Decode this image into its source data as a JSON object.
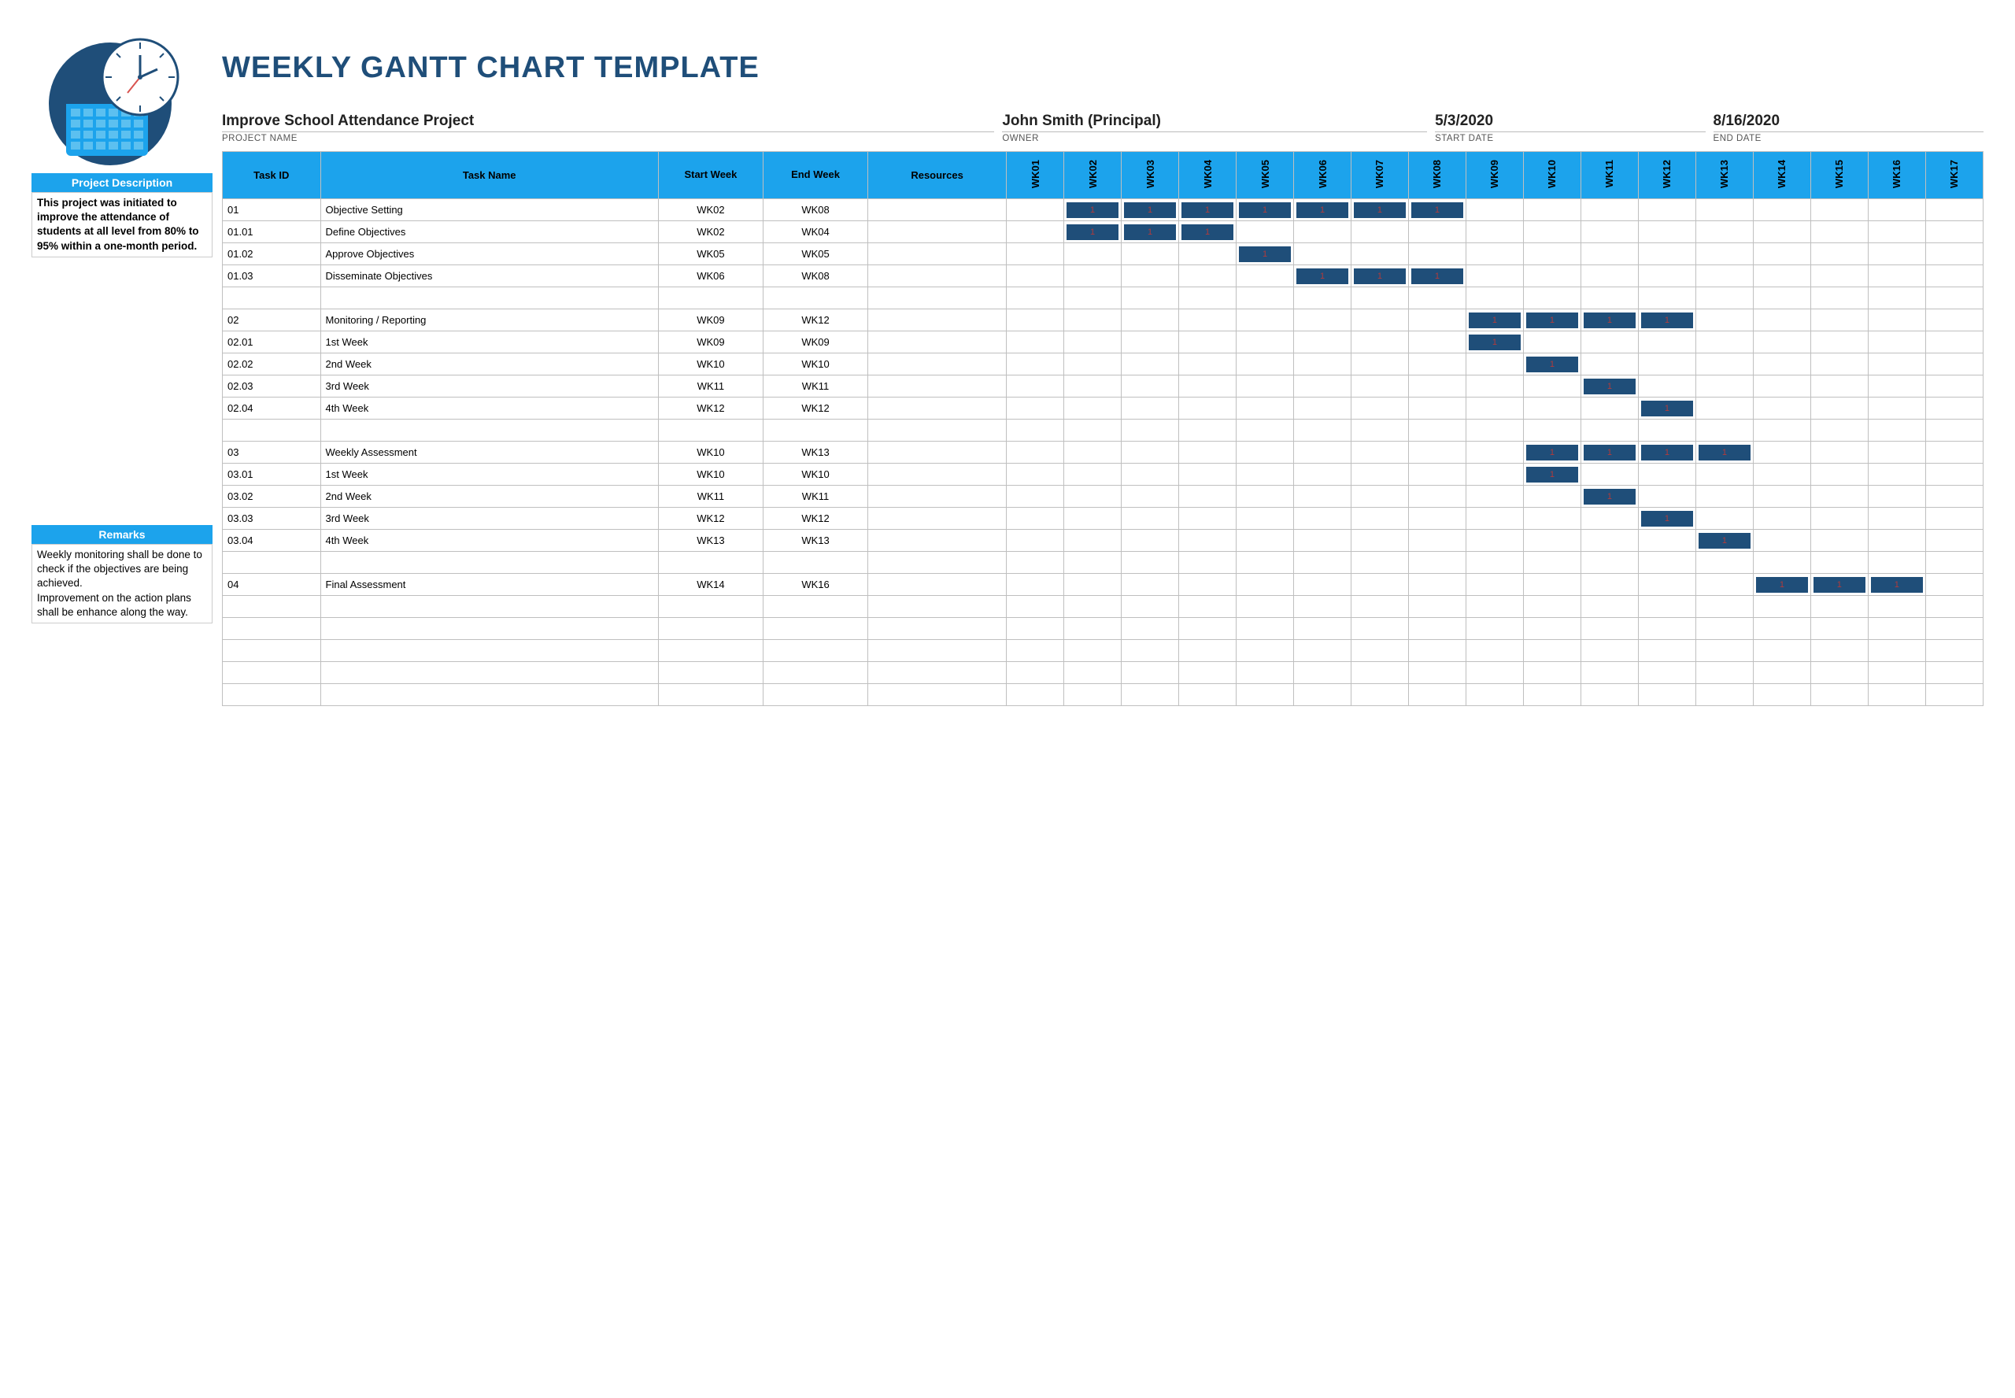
{
  "title": "WEEKLY GANTT CHART TEMPLATE",
  "colors": {
    "title_color": "#1f4e79",
    "header_blue": "#1ca3ec",
    "bar_fill": "#1f4e79",
    "bar_text": "#b23a3a",
    "border": "#bfbfbf",
    "background": "#ffffff"
  },
  "typography": {
    "title_fontsize": 38,
    "body_fontsize": 14,
    "meta_value_fontsize": 19,
    "meta_label_fontsize": 11.5
  },
  "left": {
    "desc_header": "Project Description",
    "desc_body": "This project was initiated to improve the attendance of students at all level from 80% to 95% within a one-month period.",
    "remarks_header": "Remarks",
    "remarks_body": "Weekly monitoring shall be done to check if the objectives are being achieved.\nImprovement on the action plans shall be enhance along the way."
  },
  "meta": {
    "project_name": {
      "label": "PROJECT NAME",
      "value": "Improve School Attendance Project"
    },
    "owner": {
      "label": "OWNER",
      "value": "John Smith (Principal)"
    },
    "start_date": {
      "label": "START DATE",
      "value": "5/3/2020"
    },
    "end_date": {
      "label": "END DATE",
      "value": "8/16/2020"
    }
  },
  "headers": {
    "task_id": "Task ID",
    "task_name": "Task Name",
    "start_week": "Start Week",
    "end_week": "End Week",
    "resources": "Resources"
  },
  "weeks": [
    "WK01",
    "WK02",
    "WK03",
    "WK04",
    "WK05",
    "WK06",
    "WK07",
    "WK08",
    "WK09",
    "WK10",
    "WK11",
    "WK12",
    "WK13",
    "WK14",
    "WK15",
    "WK16",
    "WK17"
  ],
  "tasks": [
    {
      "id": "01",
      "name": "Objective Setting",
      "start": "WK02",
      "end": "WK08",
      "bars": [
        2,
        3,
        4,
        5,
        6,
        7,
        8
      ]
    },
    {
      "id": "01.01",
      "name": "Define Objectives",
      "start": "WK02",
      "end": "WK04",
      "bars": [
        2,
        3,
        4
      ]
    },
    {
      "id": "01.02",
      "name": "Approve Objectives",
      "start": "WK05",
      "end": "WK05",
      "bars": [
        5
      ]
    },
    {
      "id": "01.03",
      "name": "Disseminate Objectives",
      "start": "WK06",
      "end": "WK08",
      "bars": [
        6,
        7,
        8
      ]
    },
    {
      "spacer": true
    },
    {
      "id": "02",
      "name": "Monitoring / Reporting",
      "start": "WK09",
      "end": "WK12",
      "bars": [
        9,
        10,
        11,
        12
      ]
    },
    {
      "id": "02.01",
      "name": "1st Week",
      "start": "WK09",
      "end": "WK09",
      "bars": [
        9
      ]
    },
    {
      "id": "02.02",
      "name": "2nd Week",
      "start": "WK10",
      "end": "WK10",
      "bars": [
        10
      ]
    },
    {
      "id": "02.03",
      "name": "3rd Week",
      "start": "WK11",
      "end": "WK11",
      "bars": [
        11
      ]
    },
    {
      "id": "02.04",
      "name": "4th Week",
      "start": "WK12",
      "end": "WK12",
      "bars": [
        12
      ]
    },
    {
      "spacer": true
    },
    {
      "id": "03",
      "name": "Weekly Assessment",
      "start": "WK10",
      "end": "WK13",
      "bars": [
        10,
        11,
        12,
        13
      ]
    },
    {
      "id": "03.01",
      "name": "1st Week",
      "start": "WK10",
      "end": "WK10",
      "bars": [
        10
      ]
    },
    {
      "id": "03.02",
      "name": "2nd Week",
      "start": "WK11",
      "end": "WK11",
      "bars": [
        11
      ]
    },
    {
      "id": "03.03",
      "name": "3rd Week",
      "start": "WK12",
      "end": "WK12",
      "bars": [
        12
      ]
    },
    {
      "id": "03.04",
      "name": "4th Week",
      "start": "WK13",
      "end": "WK13",
      "bars": [
        13
      ]
    },
    {
      "spacer": true
    },
    {
      "id": "04",
      "name": "Final Assessment",
      "start": "WK14",
      "end": "WK16",
      "bars": [
        14,
        15,
        16
      ]
    },
    {
      "spacer": true
    },
    {
      "spacer": true
    },
    {
      "spacer": true
    },
    {
      "spacer": true
    },
    {
      "spacer": true
    }
  ],
  "bar_label": "1",
  "week_count": 17
}
